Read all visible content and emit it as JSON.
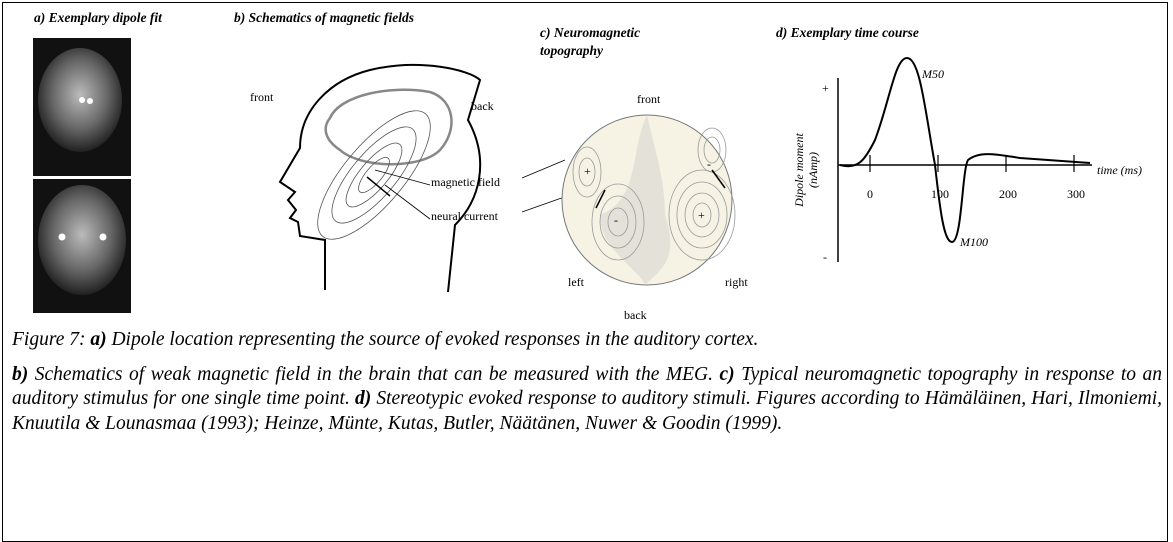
{
  "panels": {
    "a": {
      "title": "a) Exemplary dipole fit"
    },
    "b": {
      "title": "b) Schematics of magnetic fields",
      "labels": [
        "front",
        "back",
        "magnetic field",
        "neural current"
      ]
    },
    "c": {
      "title": [
        "c) Neuromagnetic",
        "topography"
      ],
      "labels": [
        "front",
        "left",
        "right",
        "back"
      ],
      "signs": [
        "+",
        "-",
        "-",
        "+"
      ]
    },
    "d": {
      "title": "d) Exemplary time course",
      "y_label": [
        "Dipole moment",
        "(nAmp)"
      ],
      "y_signs": [
        "+",
        "-"
      ],
      "x_label": "time (ms)",
      "x_ticks": [
        "0",
        "100",
        "200",
        "300"
      ],
      "peaks": [
        "M50",
        "M100"
      ]
    }
  },
  "caption": {
    "label": "Figure 7:",
    "items": [
      {
        "letter": "a)",
        "text": " Dipole location representing the source of evoked responses in the auditory cortex."
      },
      {
        "letter": "b)",
        "text": " Schematics of weak magnetic field in the brain that can be measured with the MEG. "
      },
      {
        "letter": "c)",
        "text": " Typical neuromagnetic topography in response to an auditory stimulus for one single time point. "
      },
      {
        "letter": "d)",
        "text": " Stereotypic evoked response to auditory stimuli. Figures according to Hämäläinen, Hari, Ilmoniemi, Knuutila & Lounasmaa (1993); Heinze, Münte, Kutas, Butler, Näätänen, Nuwer & Goodin (1999)."
      }
    ]
  }
}
